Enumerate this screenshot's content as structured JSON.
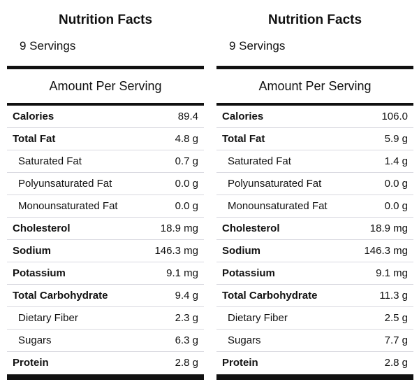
{
  "panels": [
    {
      "title": "Nutrition Facts",
      "servings": "9 Servings",
      "amount_header": "Amount Per Serving",
      "rows": [
        {
          "label": "Calories",
          "value": "89.4",
          "bold": true,
          "sub": false
        },
        {
          "label": "Total Fat",
          "value": "4.8 g",
          "bold": true,
          "sub": false
        },
        {
          "label": "Saturated Fat",
          "value": "0.7 g",
          "bold": false,
          "sub": true
        },
        {
          "label": "Polyunsaturated Fat",
          "value": "0.0 g",
          "bold": false,
          "sub": true
        },
        {
          "label": "Monounsaturated Fat",
          "value": "0.0 g",
          "bold": false,
          "sub": true
        },
        {
          "label": "Cholesterol",
          "value": "18.9 mg",
          "bold": true,
          "sub": false
        },
        {
          "label": "Sodium",
          "value": "146.3 mg",
          "bold": true,
          "sub": false
        },
        {
          "label": "Potassium",
          "value": "9.1 mg",
          "bold": true,
          "sub": false
        },
        {
          "label": "Total Carbohydrate",
          "value": "9.4 g",
          "bold": true,
          "sub": false
        },
        {
          "label": "Dietary Fiber",
          "value": "2.3 g",
          "bold": false,
          "sub": true
        },
        {
          "label": "Sugars",
          "value": "6.3 g",
          "bold": false,
          "sub": true
        },
        {
          "label": "Protein",
          "value": "2.8 g",
          "bold": true,
          "sub": false
        }
      ]
    },
    {
      "title": "Nutrition Facts",
      "servings": "9 Servings",
      "amount_header": "Amount Per Serving",
      "rows": [
        {
          "label": "Calories",
          "value": "106.0",
          "bold": true,
          "sub": false
        },
        {
          "label": "Total Fat",
          "value": "5.9 g",
          "bold": true,
          "sub": false
        },
        {
          "label": "Saturated Fat",
          "value": "1.4 g",
          "bold": false,
          "sub": true
        },
        {
          "label": "Polyunsaturated Fat",
          "value": "0.0 g",
          "bold": false,
          "sub": true
        },
        {
          "label": "Monounsaturated Fat",
          "value": "0.0 g",
          "bold": false,
          "sub": true
        },
        {
          "label": "Cholesterol",
          "value": "18.9 mg",
          "bold": true,
          "sub": false
        },
        {
          "label": "Sodium",
          "value": "146.3 mg",
          "bold": true,
          "sub": false
        },
        {
          "label": "Potassium",
          "value": "9.1 mg",
          "bold": true,
          "sub": false
        },
        {
          "label": "Total Carbohydrate",
          "value": "11.3 g",
          "bold": true,
          "sub": false
        },
        {
          "label": "Dietary Fiber",
          "value": "2.5 g",
          "bold": false,
          "sub": true
        },
        {
          "label": "Sugars",
          "value": "7.7 g",
          "bold": false,
          "sub": true
        },
        {
          "label": "Protein",
          "value": "2.8 g",
          "bold": true,
          "sub": false
        }
      ]
    }
  ]
}
